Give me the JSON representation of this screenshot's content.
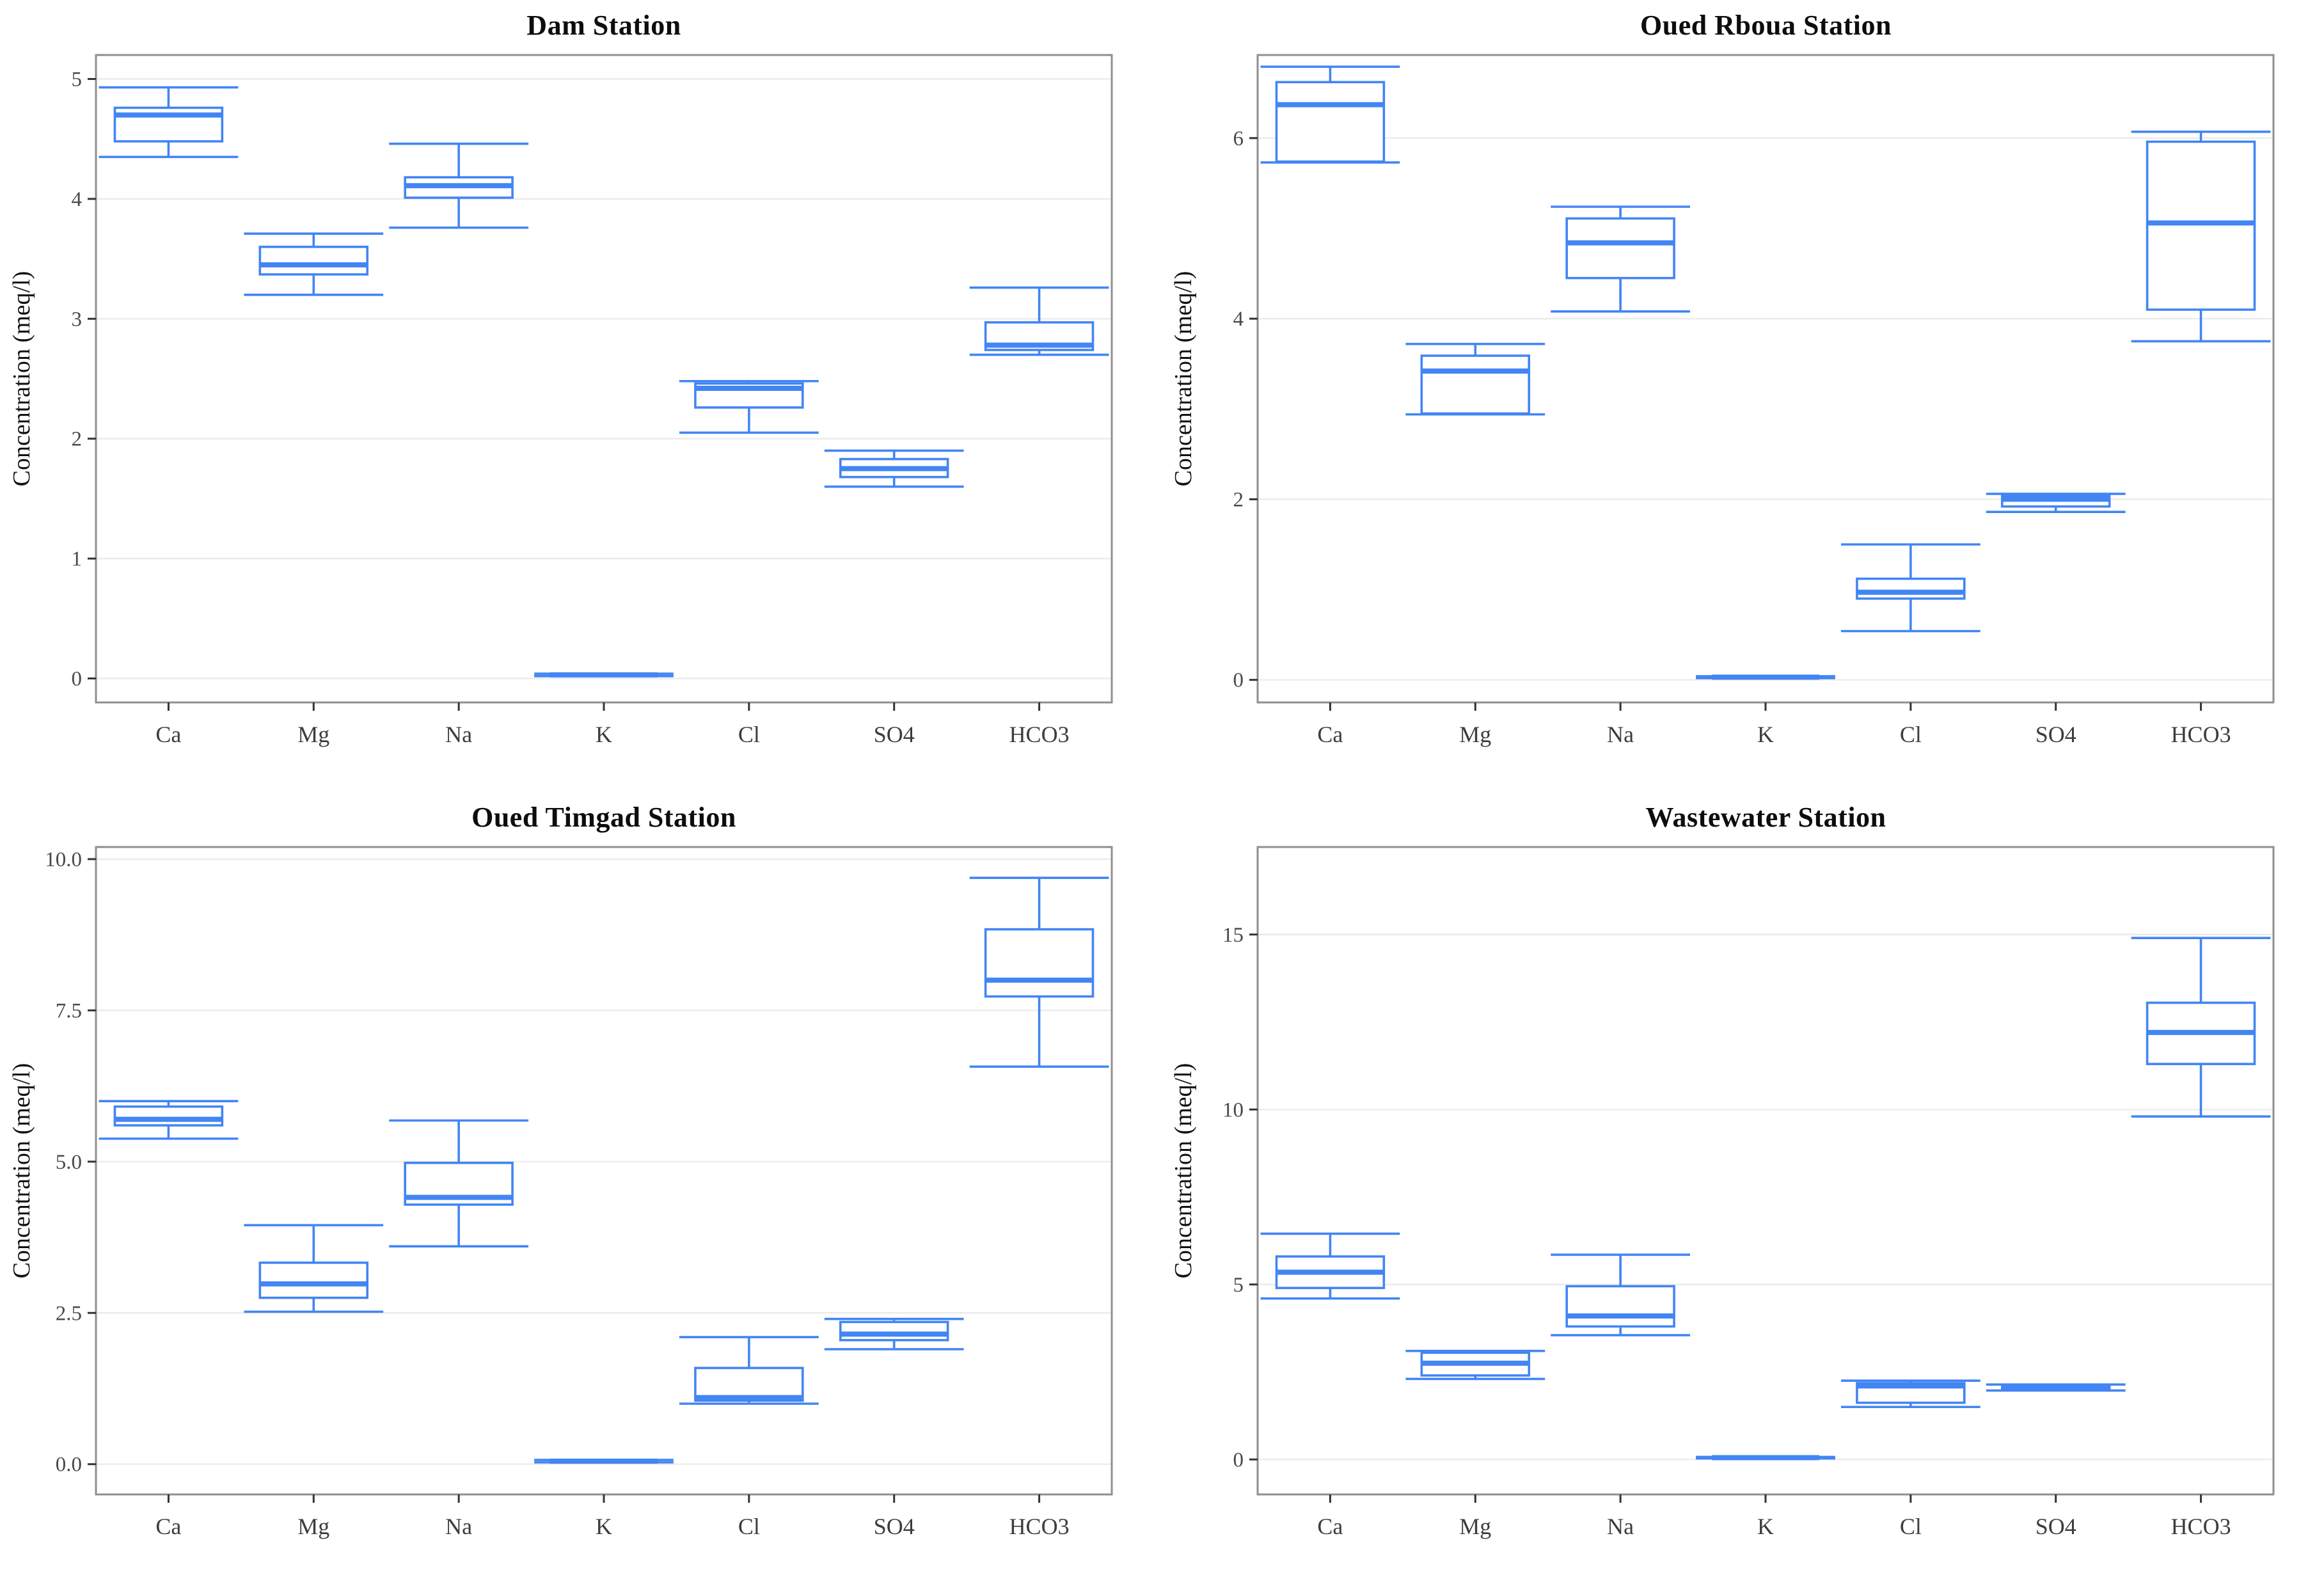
{
  "page": {
    "background": "#ffffff"
  },
  "styles": {
    "box_color": "#4285F4",
    "grid_color": "#ebebeb",
    "panel_border_color": "#8f8f8f",
    "axis_tick_color": "#333333",
    "tick_label_color": "#4a4a4a",
    "category_label_color": "#3d3d3d",
    "title_color": "#0d0d0d",
    "ylabel_color": "#111111"
  },
  "chart_data": [
    {
      "type": "boxplot",
      "title": "Dam Station",
      "ylabel": "Concentration (meq/l)",
      "xlabel": "",
      "grid": "horizontal-only",
      "legend": "none",
      "categories": [
        "Ca",
        "Mg",
        "Na",
        "K",
        "Cl",
        "SO4",
        "HCO3"
      ],
      "yticks": [
        0,
        1,
        2,
        3,
        4,
        5
      ],
      "ytick_labels": [
        "0",
        "1",
        "2",
        "3",
        "4",
        "5"
      ],
      "ylim": [
        -0.2,
        5.2
      ],
      "boxes": [
        {
          "category": "Ca",
          "min": 4.35,
          "q1": 4.48,
          "median": 4.7,
          "q3": 4.76,
          "max": 4.93
        },
        {
          "category": "Mg",
          "min": 3.2,
          "q1": 3.37,
          "median": 3.45,
          "q3": 3.6,
          "max": 3.71
        },
        {
          "category": "Na",
          "min": 3.76,
          "q1": 4.01,
          "median": 4.11,
          "q3": 4.18,
          "max": 4.46
        },
        {
          "category": "K",
          "min": 0.02,
          "q1": 0.025,
          "median": 0.03,
          "q3": 0.035,
          "max": 0.04
        },
        {
          "category": "Cl",
          "min": 2.05,
          "q1": 2.26,
          "median": 2.42,
          "q3": 2.46,
          "max": 2.48
        },
        {
          "category": "SO4",
          "min": 1.6,
          "q1": 1.68,
          "median": 1.75,
          "q3": 1.83,
          "max": 1.9
        },
        {
          "category": "HCO3",
          "min": 2.7,
          "q1": 2.74,
          "median": 2.78,
          "q3": 2.97,
          "max": 3.26
        }
      ]
    },
    {
      "type": "boxplot",
      "title": "Oued Rboua Station",
      "ylabel": "Concentration (meq/l)",
      "xlabel": "",
      "grid": "horizontal-only",
      "legend": "none",
      "categories": [
        "Ca",
        "Mg",
        "Na",
        "K",
        "Cl",
        "SO4",
        "HCO3"
      ],
      "yticks": [
        0,
        2,
        4,
        6
      ],
      "ytick_labels": [
        "0",
        "2",
        "4",
        "6"
      ],
      "ylim": [
        -0.25,
        6.92
      ],
      "boxes": [
        {
          "category": "Ca",
          "min": 5.73,
          "q1": 5.74,
          "median": 6.37,
          "q3": 6.62,
          "max": 6.79
        },
        {
          "category": "Mg",
          "min": 2.94,
          "q1": 2.95,
          "median": 3.42,
          "q3": 3.59,
          "max": 3.72
        },
        {
          "category": "Na",
          "min": 4.08,
          "q1": 4.45,
          "median": 4.84,
          "q3": 5.11,
          "max": 5.24
        },
        {
          "category": "K",
          "min": 0.02,
          "q1": 0.025,
          "median": 0.03,
          "q3": 0.035,
          "max": 0.04
        },
        {
          "category": "Cl",
          "min": 0.54,
          "q1": 0.9,
          "median": 0.97,
          "q3": 1.12,
          "max": 1.5
        },
        {
          "category": "SO4",
          "min": 1.86,
          "q1": 1.92,
          "median": 2.0,
          "q3": 2.04,
          "max": 2.06
        },
        {
          "category": "HCO3",
          "min": 3.75,
          "q1": 4.1,
          "median": 5.06,
          "q3": 5.96,
          "max": 6.07
        }
      ]
    },
    {
      "type": "boxplot",
      "title": "Oued Timgad Station",
      "ylabel": "Concentration (meq/l)",
      "xlabel": "",
      "grid": "horizontal-only",
      "legend": "none",
      "categories": [
        "Ca",
        "Mg",
        "Na",
        "K",
        "Cl",
        "SO4",
        "HCO3"
      ],
      "yticks": [
        0,
        2.5,
        5,
        7.5,
        10
      ],
      "ytick_labels": [
        "0.0",
        "2.5",
        "5.0",
        "7.5",
        "10.0"
      ],
      "ylim": [
        -0.5,
        10.2
      ],
      "boxes": [
        {
          "category": "Ca",
          "min": 5.38,
          "q1": 5.6,
          "median": 5.7,
          "q3": 5.91,
          "max": 6.0
        },
        {
          "category": "Mg",
          "min": 2.52,
          "q1": 2.75,
          "median": 2.98,
          "q3": 3.33,
          "max": 3.95
        },
        {
          "category": "Na",
          "min": 3.6,
          "q1": 4.29,
          "median": 4.41,
          "q3": 4.98,
          "max": 5.68
        },
        {
          "category": "K",
          "min": 0.03,
          "q1": 0.04,
          "median": 0.05,
          "q3": 0.06,
          "max": 0.07
        },
        {
          "category": "Cl",
          "min": 1.0,
          "q1": 1.05,
          "median": 1.1,
          "q3": 1.59,
          "max": 2.1
        },
        {
          "category": "SO4",
          "min": 1.9,
          "q1": 2.05,
          "median": 2.15,
          "q3": 2.35,
          "max": 2.4
        },
        {
          "category": "HCO3",
          "min": 6.57,
          "q1": 7.73,
          "median": 8.0,
          "q3": 8.84,
          "max": 9.69
        }
      ]
    },
    {
      "type": "boxplot",
      "title": "Wastewater Station",
      "ylabel": "Concentration (meq/l)",
      "xlabel": "",
      "grid": "horizontal-only",
      "legend": "none",
      "categories": [
        "Ca",
        "Mg",
        "Na",
        "K",
        "Cl",
        "SO4",
        "HCO3"
      ],
      "yticks": [
        0,
        5,
        10,
        15
      ],
      "ytick_labels": [
        "0",
        "5",
        "10",
        "15"
      ],
      "ylim": [
        -1.0,
        17.5
      ],
      "boxes": [
        {
          "category": "Ca",
          "min": 4.6,
          "q1": 4.9,
          "median": 5.35,
          "q3": 5.8,
          "max": 6.45
        },
        {
          "category": "Mg",
          "min": 2.3,
          "q1": 2.4,
          "median": 2.75,
          "q3": 3.05,
          "max": 3.1
        },
        {
          "category": "Na",
          "min": 3.55,
          "q1": 3.8,
          "median": 4.1,
          "q3": 4.95,
          "max": 5.85
        },
        {
          "category": "K",
          "min": 0.03,
          "q1": 0.04,
          "median": 0.05,
          "q3": 0.06,
          "max": 0.07
        },
        {
          "category": "Cl",
          "min": 1.5,
          "q1": 1.62,
          "median": 2.1,
          "q3": 2.18,
          "max": 2.25
        },
        {
          "category": "SO4",
          "min": 1.97,
          "q1": 2.02,
          "median": 2.07,
          "q3": 2.1,
          "max": 2.14
        },
        {
          "category": "HCO3",
          "min": 9.8,
          "q1": 11.3,
          "median": 12.2,
          "q3": 13.05,
          "max": 14.9
        }
      ]
    }
  ]
}
